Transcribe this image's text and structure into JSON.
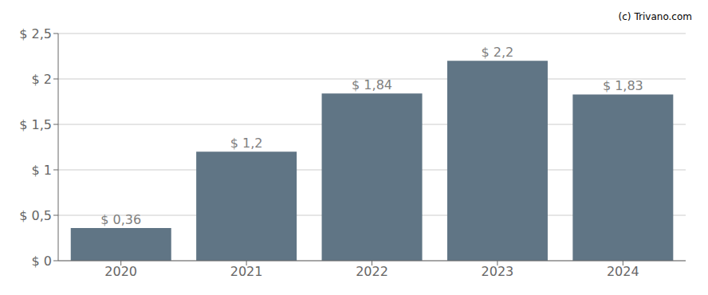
{
  "chart_data": {
    "type": "bar",
    "categories": [
      "2020",
      "2021",
      "2022",
      "2023",
      "2024"
    ],
    "values": [
      0.36,
      1.2,
      1.84,
      2.2,
      1.83
    ],
    "value_labels": [
      "$ 0,36",
      "$ 1,2",
      "$ 1,84",
      "$ 2,2",
      "$ 1,83"
    ],
    "data_labels": true,
    "color": "#607585",
    "ylim": [
      0,
      2.5
    ],
    "yticks": [
      {
        "value": 0,
        "label": "$ 0"
      },
      {
        "value": 0.5,
        "label": "$ 0,5"
      },
      {
        "value": 1.0,
        "label": "$ 1"
      },
      {
        "value": 1.5,
        "label": "$ 1,5"
      },
      {
        "value": 2.0,
        "label": "$ 2"
      },
      {
        "value": 2.5,
        "label": "$ 2,5"
      }
    ],
    "grid": true,
    "annotations": [
      "(c)",
      "Trivano.com"
    ]
  }
}
